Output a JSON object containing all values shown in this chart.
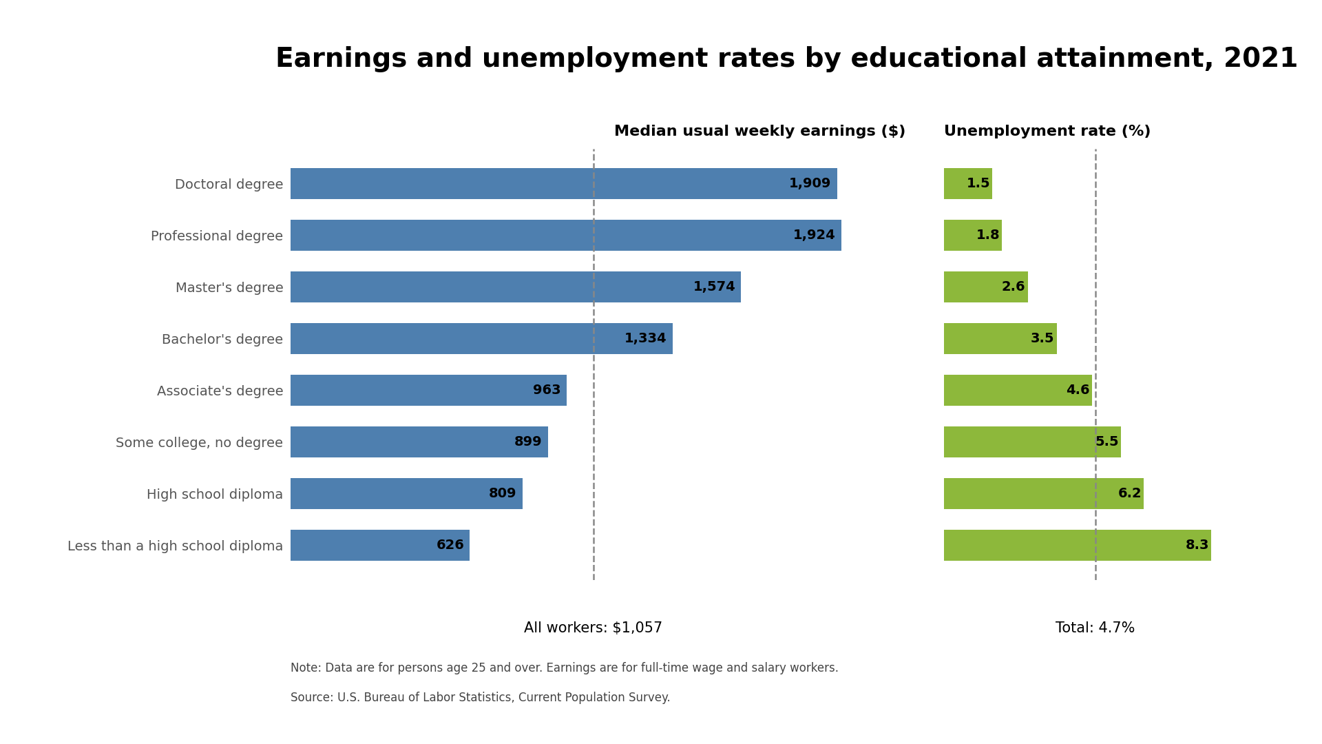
{
  "title": "Earnings and unemployment rates by educational attainment, 2021",
  "categories": [
    "Doctoral degree",
    "Professional degree",
    "Master's degree",
    "Bachelor's degree",
    "Associate's degree",
    "Some college, no degree",
    "High school diploma",
    "Less than a high school diploma"
  ],
  "earnings": [
    1909,
    1924,
    1574,
    1334,
    963,
    899,
    809,
    626
  ],
  "unemployment": [
    1.5,
    1.8,
    2.6,
    3.5,
    4.6,
    5.5,
    6.2,
    8.3
  ],
  "earnings_color": "#4E7FAF",
  "unemployment_color": "#8DB83B",
  "earnings_header": "Median usual weekly earnings ($)",
  "unemployment_header": "Unemployment rate (%)",
  "all_workers_label": "All workers: $1,057",
  "all_workers_value": 1057,
  "total_unemployment_label": "Total: 4.7%",
  "total_unemployment_value": 4.7,
  "note_line1": "Note: Data are for persons age 25 and over. Earnings are for full-time wage and salary workers.",
  "note_line2": "Source: U.S. Bureau of Labor Statistics, Current Population Survey.",
  "background_color": "#FFFFFF",
  "title_fontsize": 28,
  "header_fontsize": 16,
  "label_fontsize": 14,
  "bar_label_fontsize": 14,
  "note_fontsize": 12,
  "annot_fontsize": 15
}
